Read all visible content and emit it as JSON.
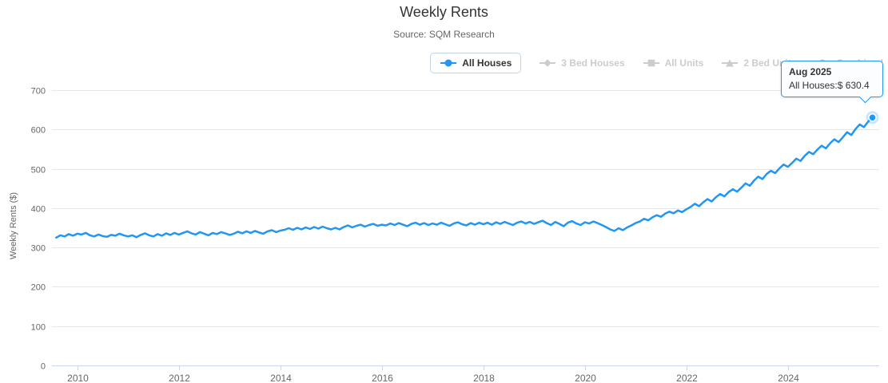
{
  "title": "Weekly Rents",
  "subtitle": "Source: SQM Research",
  "legend": {
    "items": [
      {
        "label": "All Houses",
        "marker": "circle",
        "active": true
      },
      {
        "label": "3 Bed Houses",
        "marker": "diamond",
        "active": false
      },
      {
        "label": "All Units",
        "marker": "square",
        "active": false
      },
      {
        "label": "2 Bed Units",
        "marker": "triangle",
        "active": false
      },
      {
        "label": "Combined",
        "marker": "circle",
        "active": false
      }
    ]
  },
  "tooltip": {
    "header": "Aug 2025",
    "body": "All Houses:$ 630.4"
  },
  "colors": {
    "accent": "#2196f3",
    "grid": "#e6e6e6",
    "axis": "#ccd6eb",
    "text": "#666666",
    "disabled": "#cccccc"
  },
  "chart_data": {
    "type": "line",
    "title": "Weekly Rents",
    "subtitle": "Source: SQM Research",
    "xlabel": "",
    "ylabel": "Weekly Rents ($)",
    "ylim": [
      0,
      700
    ],
    "y_ticks": [
      0,
      100,
      200,
      300,
      400,
      500,
      600,
      700
    ],
    "x_ticks": [
      2010,
      2012,
      2014,
      2016,
      2018,
      2020,
      2022,
      2024
    ],
    "x_range": [
      2009.5,
      2025.8
    ],
    "grid": true,
    "legend_position": "top-right",
    "series": [
      {
        "name": "All Houses",
        "color": "#2196f3",
        "x_start": 2009.583,
        "interval_years": 0.083333,
        "values": [
          325,
          331,
          328,
          334,
          330,
          335,
          333,
          337,
          331,
          328,
          333,
          329,
          327,
          332,
          330,
          335,
          331,
          328,
          331,
          326,
          332,
          336,
          331,
          328,
          334,
          330,
          336,
          332,
          337,
          333,
          337,
          341,
          336,
          333,
          339,
          335,
          331,
          337,
          334,
          339,
          336,
          332,
          335,
          340,
          336,
          341,
          337,
          342,
          338,
          335,
          341,
          344,
          339,
          343,
          345,
          349,
          345,
          350,
          346,
          351,
          347,
          352,
          348,
          353,
          349,
          346,
          350,
          346,
          352,
          356,
          351,
          355,
          358,
          353,
          357,
          360,
          355,
          358,
          356,
          361,
          357,
          362,
          358,
          354,
          360,
          363,
          358,
          362,
          357,
          361,
          358,
          363,
          359,
          355,
          361,
          364,
          359,
          356,
          362,
          358,
          363,
          359,
          363,
          358,
          364,
          360,
          365,
          361,
          357,
          363,
          366,
          361,
          365,
          360,
          364,
          368,
          362,
          357,
          365,
          360,
          354,
          363,
          367,
          361,
          357,
          364,
          361,
          366,
          362,
          357,
          352,
          346,
          342,
          349,
          344,
          351,
          356,
          362,
          366,
          373,
          369,
          377,
          382,
          378,
          386,
          391,
          387,
          394,
          390,
          397,
          403,
          411,
          405,
          415,
          423,
          417,
          428,
          436,
          430,
          441,
          448,
          442,
          452,
          463,
          457,
          470,
          480,
          474,
          487,
          495,
          489,
          501,
          511,
          505,
          515,
          526,
          520,
          533,
          543,
          537,
          549,
          559,
          552,
          565,
          575,
          568,
          580,
          593,
          586,
          601,
          613,
          606,
          620,
          630.4
        ]
      }
    ],
    "last_point": {
      "x_label": "Aug 2025",
      "value": 630.4,
      "series": "All Houses"
    }
  }
}
